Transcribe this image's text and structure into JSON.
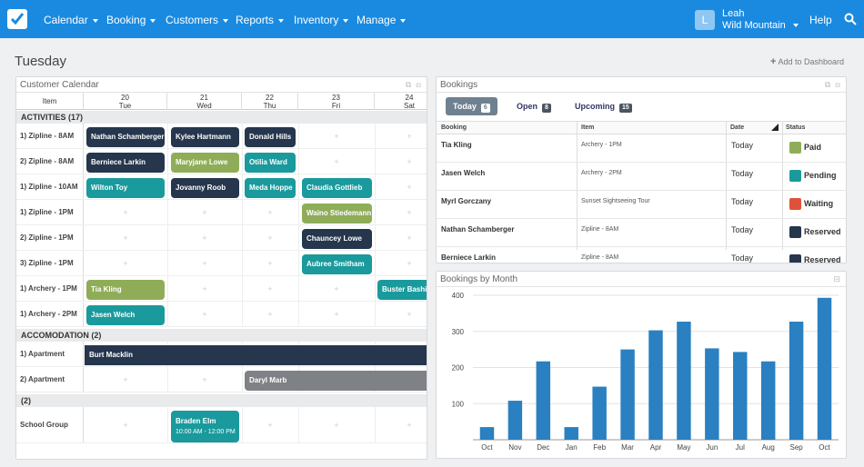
{
  "nav": {
    "items": [
      "Calendar",
      "Booking",
      "Customers",
      "Reports",
      "Inventory",
      "Manage"
    ],
    "avatar_letter": "L",
    "user_name": "Leah",
    "user_org": "Wild Mountain",
    "help": "Help"
  },
  "page": {
    "title": "Tuesday",
    "add_dashboard": "Add to Dashboard"
  },
  "calendar": {
    "title": "Customer Calendar",
    "item_header": "Item",
    "days": [
      {
        "num": "20",
        "day": "Tue"
      },
      {
        "num": "21",
        "day": "Wed"
      },
      {
        "num": "22",
        "day": "Thu"
      },
      {
        "num": "23",
        "day": "Fri"
      },
      {
        "num": "24",
        "day": "Sat"
      }
    ],
    "sections": [
      "ACTIVITIES (17)",
      "ACCOMODATION (2)",
      "(2)"
    ],
    "rows": [
      "1) Zipline - 8AM",
      "2) Zipline - 8AM",
      "1) Zipline - 10AM",
      "1) Zipline - 1PM",
      "2) Zipline - 1PM",
      "3) Zipline - 1PM",
      "1) Archery - 1PM",
      "1) Archery - 2PM",
      "1) Apartment",
      "2) Apartment",
      "School Group"
    ],
    "events": [
      "Nathan Schamberger",
      "Kylee Hartmann",
      "Donald Hills",
      "Berniece Larkin",
      "Maryjane Lowe",
      "Otilia Ward",
      "Wilton Toy",
      "Jovanny Roob",
      "Meda Hoppe",
      "Claudia Gottlieb",
      "Waino Stiedemann",
      "Chauncey Lowe",
      "Aubree Smitham",
      "Tia Kling",
      "Buster Bashirian",
      "Jasen Welch",
      "Burt Macklin",
      "Daryl Marb",
      "Braden Elm"
    ],
    "event_time": "10:00 AM - 12:00 PM",
    "plus": "+"
  },
  "bookings": {
    "title": "Bookings",
    "tabs": [
      {
        "label": "Today",
        "count": "6"
      },
      {
        "label": "Open",
        "count": "8"
      },
      {
        "label": "Upcoming",
        "count": "15"
      }
    ],
    "columns": [
      "Booking",
      "Item",
      "Date",
      "Status"
    ],
    "rows": [
      {
        "name": "Tia Kling",
        "item": "Archery - 1PM",
        "date": "Today",
        "status": "Paid"
      },
      {
        "name": "Jasen Welch",
        "item": "Archery - 2PM",
        "date": "Today",
        "status": "Pending"
      },
      {
        "name": "Myrl Gorczany",
        "item": "Sunset Sightseeing Tour",
        "date": "Today",
        "status": "Waiting"
      },
      {
        "name": "Nathan Schamberger",
        "item": "Zipline - 8AM",
        "date": "Today",
        "status": "Reserved"
      },
      {
        "name": "Berniece Larkin",
        "item": "Zipline - 8AM",
        "date": "Today",
        "status": "Reserved"
      }
    ],
    "status_colors": {
      "Paid": "#8fad59",
      "Pending": "#1a9a9c",
      "Waiting": "#e0513b",
      "Reserved": "#25364d"
    }
  },
  "chart": {
    "panel_title": "Bookings by Month"
  },
  "chart_data": {
    "type": "bar",
    "title": "",
    "categories": [
      "Oct",
      "Nov",
      "Dec",
      "Jan",
      "Feb",
      "Mar",
      "Apr",
      "May",
      "Jun",
      "Jul",
      "Aug",
      "Sep",
      "Oct"
    ],
    "values": [
      35,
      108,
      217,
      35,
      147,
      250,
      303,
      327,
      253,
      243,
      217,
      327,
      393
    ],
    "ylim": [
      0,
      400
    ],
    "yticks": [
      100,
      200,
      300,
      400
    ],
    "grid": true,
    "color": "#2a80c0"
  }
}
